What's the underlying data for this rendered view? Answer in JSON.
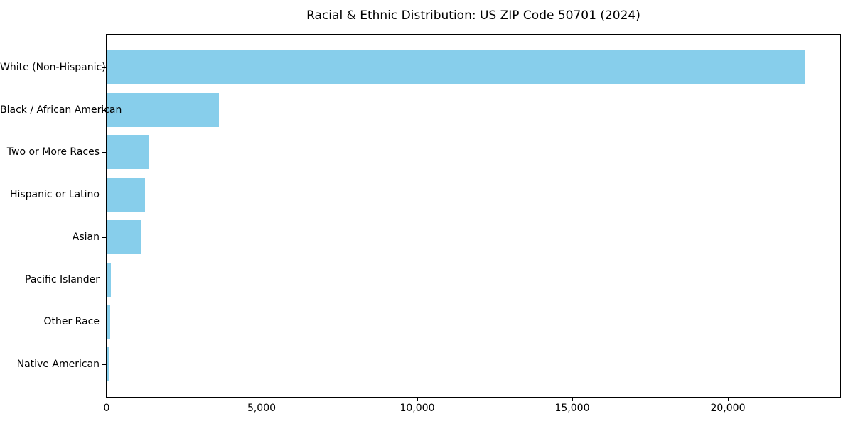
{
  "chart_data": {
    "type": "bar",
    "orientation": "horizontal",
    "title": "Racial & Ethnic Distribution: US ZIP Code 50701 (2024)",
    "categories": [
      "White (Non-Hispanic)",
      "Black / African American",
      "Two or More Races",
      "Hispanic or Latino",
      "Asian",
      "Pacific Islander",
      "Other Race",
      "Native American"
    ],
    "values": [
      22500,
      3620,
      1350,
      1230,
      1120,
      140,
      110,
      65
    ],
    "title_text": "Racial & Ethnic Distribution: US ZIP Code 50701 (2024)",
    "xlabel": "",
    "ylabel": "",
    "xlim": [
      0,
      23625
    ],
    "xticks": [
      0,
      5000,
      10000,
      15000,
      20000
    ],
    "xtick_labels": [
      "0",
      "5,000",
      "10,000",
      "15,000",
      "20,000"
    ],
    "bar_color": "#87CEEB",
    "text_color": "#000000",
    "background_color": "#FFFFFF",
    "grid": false,
    "legend": null
  }
}
